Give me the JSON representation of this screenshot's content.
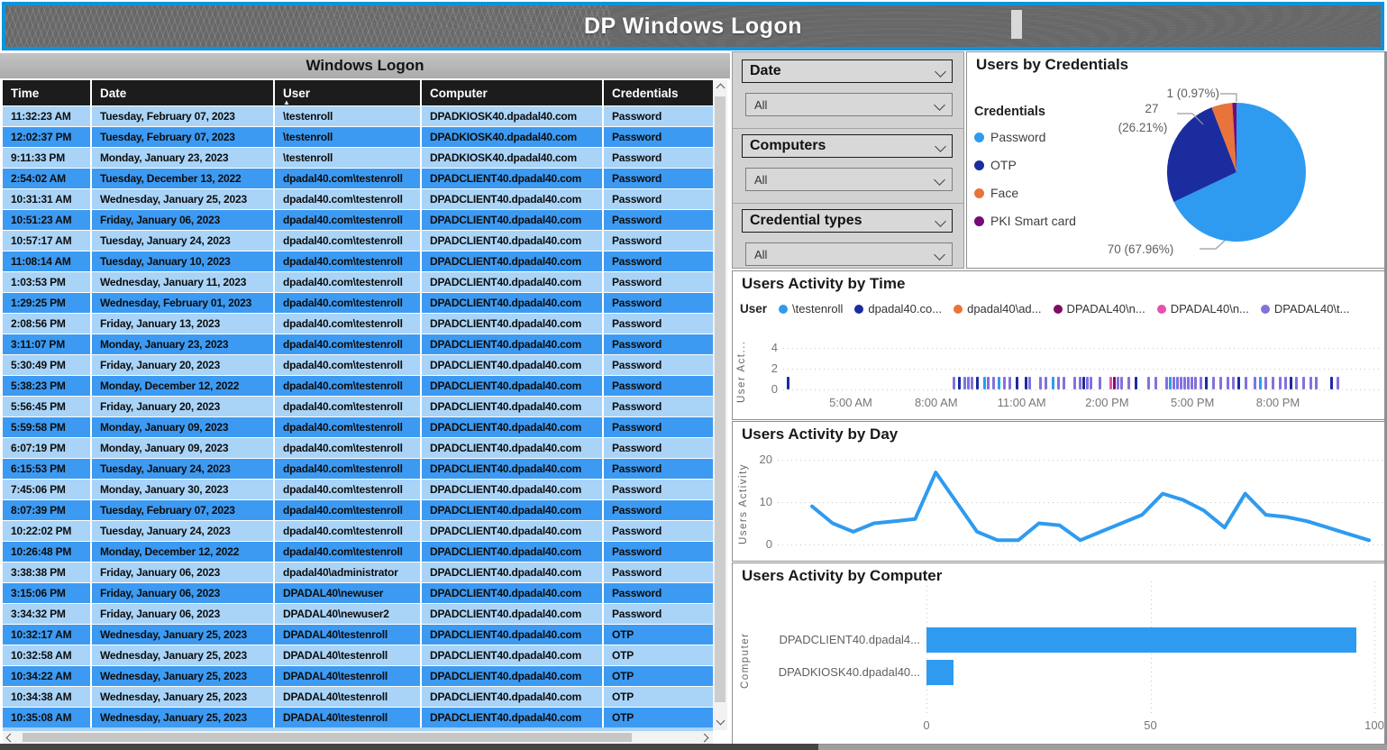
{
  "banner": {
    "title": "DP Windows Logon"
  },
  "table_panel": {
    "title": "Windows Logon",
    "columns": [
      "Time",
      "Date",
      "User",
      "Computer",
      "Credentials"
    ],
    "sort_column": "User",
    "rows": [
      [
        "11:32:23 AM",
        "Tuesday, February 07, 2023",
        "\\testenroll",
        "DPADKIOSK40.dpadal40.com",
        "Password"
      ],
      [
        "12:02:37 PM",
        "Tuesday, February 07, 2023",
        "\\testenroll",
        "DPADKIOSK40.dpadal40.com",
        "Password"
      ],
      [
        "9:11:33 PM",
        "Monday, January 23, 2023",
        "\\testenroll",
        "DPADKIOSK40.dpadal40.com",
        "Password"
      ],
      [
        "2:54:02 AM",
        "Tuesday, December 13, 2022",
        "dpadal40.com\\testenroll",
        "DPADCLIENT40.dpadal40.com",
        "Password"
      ],
      [
        "10:31:31 AM",
        "Wednesday, January 25, 2023",
        "dpadal40.com\\testenroll",
        "DPADCLIENT40.dpadal40.com",
        "Password"
      ],
      [
        "10:51:23 AM",
        "Friday, January 06, 2023",
        "dpadal40.com\\testenroll",
        "DPADCLIENT40.dpadal40.com",
        "Password"
      ],
      [
        "10:57:17 AM",
        "Tuesday, January 24, 2023",
        "dpadal40.com\\testenroll",
        "DPADCLIENT40.dpadal40.com",
        "Password"
      ],
      [
        "11:08:14 AM",
        "Tuesday, January 10, 2023",
        "dpadal40.com\\testenroll",
        "DPADCLIENT40.dpadal40.com",
        "Password"
      ],
      [
        "1:03:53 PM",
        "Wednesday, January 11, 2023",
        "dpadal40.com\\testenroll",
        "DPADCLIENT40.dpadal40.com",
        "Password"
      ],
      [
        "1:29:25 PM",
        "Wednesday, February 01, 2023",
        "dpadal40.com\\testenroll",
        "DPADCLIENT40.dpadal40.com",
        "Password"
      ],
      [
        "2:08:56 PM",
        "Friday, January 13, 2023",
        "dpadal40.com\\testenroll",
        "DPADCLIENT40.dpadal40.com",
        "Password"
      ],
      [
        "3:11:07 PM",
        "Monday, January 23, 2023",
        "dpadal40.com\\testenroll",
        "DPADCLIENT40.dpadal40.com",
        "Password"
      ],
      [
        "5:30:49 PM",
        "Friday, January 20, 2023",
        "dpadal40.com\\testenroll",
        "DPADCLIENT40.dpadal40.com",
        "Password"
      ],
      [
        "5:38:23 PM",
        "Monday, December 12, 2022",
        "dpadal40.com\\testenroll",
        "DPADCLIENT40.dpadal40.com",
        "Password"
      ],
      [
        "5:56:45 PM",
        "Friday, January 20, 2023",
        "dpadal40.com\\testenroll",
        "DPADCLIENT40.dpadal40.com",
        "Password"
      ],
      [
        "5:59:58 PM",
        "Monday, January 09, 2023",
        "dpadal40.com\\testenroll",
        "DPADCLIENT40.dpadal40.com",
        "Password"
      ],
      [
        "6:07:19 PM",
        "Monday, January 09, 2023",
        "dpadal40.com\\testenroll",
        "DPADCLIENT40.dpadal40.com",
        "Password"
      ],
      [
        "6:15:53 PM",
        "Tuesday, January 24, 2023",
        "dpadal40.com\\testenroll",
        "DPADCLIENT40.dpadal40.com",
        "Password"
      ],
      [
        "7:45:06 PM",
        "Monday, January 30, 2023",
        "dpadal40.com\\testenroll",
        "DPADCLIENT40.dpadal40.com",
        "Password"
      ],
      [
        "8:07:39 PM",
        "Tuesday, February 07, 2023",
        "dpadal40.com\\testenroll",
        "DPADCLIENT40.dpadal40.com",
        "Password"
      ],
      [
        "10:22:02 PM",
        "Tuesday, January 24, 2023",
        "dpadal40.com\\testenroll",
        "DPADCLIENT40.dpadal40.com",
        "Password"
      ],
      [
        "10:26:48 PM",
        "Monday, December 12, 2022",
        "dpadal40.com\\testenroll",
        "DPADCLIENT40.dpadal40.com",
        "Password"
      ],
      [
        "3:38:38 PM",
        "Friday, January 06, 2023",
        "dpadal40\\administrator",
        "DPADCLIENT40.dpadal40.com",
        "Password"
      ],
      [
        "3:15:06 PM",
        "Friday, January 06, 2023",
        "DPADAL40\\newuser",
        "DPADCLIENT40.dpadal40.com",
        "Password"
      ],
      [
        "3:34:32 PM",
        "Friday, January 06, 2023",
        "DPADAL40\\newuser2",
        "DPADCLIENT40.dpadal40.com",
        "Password"
      ],
      [
        "10:32:17 AM",
        "Wednesday, January 25, 2023",
        "DPADAL40\\testenroll",
        "DPADCLIENT40.dpadal40.com",
        "OTP"
      ],
      [
        "10:32:58 AM",
        "Wednesday, January 25, 2023",
        "DPADAL40\\testenroll",
        "DPADCLIENT40.dpadal40.com",
        "OTP"
      ],
      [
        "10:34:22 AM",
        "Wednesday, January 25, 2023",
        "DPADAL40\\testenroll",
        "DPADCLIENT40.dpadal40.com",
        "OTP"
      ],
      [
        "10:34:38 AM",
        "Wednesday, January 25, 2023",
        "DPADAL40\\testenroll",
        "DPADCLIENT40.dpadal40.com",
        "OTP"
      ],
      [
        "10:35:08 AM",
        "Wednesday, January 25, 2023",
        "DPADAL40\\testenroll",
        "DPADCLIENT40.dpadal40.com",
        "OTP"
      ]
    ]
  },
  "filters": {
    "items": [
      {
        "label": "Date",
        "value": "All"
      },
      {
        "label": "Computers",
        "value": "All"
      },
      {
        "label": "Credential types",
        "value": "All"
      }
    ]
  },
  "chart_data": [
    {
      "type": "pie",
      "title": "Users by Credentials",
      "legend_title": "Credentials",
      "categories": [
        "Password",
        "OTP",
        "Face",
        "PKI Smart card"
      ],
      "values": [
        70,
        27,
        5,
        1
      ],
      "colors": [
        "#2e9bf0",
        "#1b2c9f",
        "#e8743c",
        "#750b77"
      ],
      "callouts": {
        "password": "70 (67.96%)",
        "otp_value": "27",
        "otp_pct": "(26.21%)",
        "pki": "1 (0.97%)"
      }
    },
    {
      "type": "scatter",
      "title": "Users Activity by Time",
      "legend_title": "User",
      "ylabel": "User Act...",
      "yticks": [
        0,
        2,
        4
      ],
      "xticks": [
        "5:00 AM",
        "8:00 AM",
        "11:00 AM",
        "2:00 PM",
        "5:00 PM",
        "8:00 PM"
      ],
      "series": [
        {
          "name": "\\testenroll",
          "color": "#2e9bf0"
        },
        {
          "name": "dpadal40.co...",
          "color": "#1b2c9f"
        },
        {
          "name": "dpadal40\\ad...",
          "color": "#e8743c"
        },
        {
          "name": "DPADAL40\\n...",
          "color": "#7d0e63"
        },
        {
          "name": "DPADAL40\\n...",
          "color": "#e94fb0"
        },
        {
          "name": "DPADAL40\\t...",
          "color": "#8272de"
        }
      ],
      "tick_colors": {
        "p": "#8272de",
        "n": "#1b2c9f",
        "b": "#2e9bf0",
        "k": "#e94fb0",
        "m": "#7d0e63"
      },
      "ticks": [
        [
          0.6,
          "n"
        ],
        [
          28.3,
          "p"
        ],
        [
          29.2,
          "n"
        ],
        [
          30.1,
          "p"
        ],
        [
          30.7,
          "p"
        ],
        [
          31.3,
          "p"
        ],
        [
          32.2,
          "n"
        ],
        [
          33.4,
          "b"
        ],
        [
          34.0,
          "p"
        ],
        [
          34.9,
          "p"
        ],
        [
          35.8,
          "b"
        ],
        [
          36.7,
          "p"
        ],
        [
          37.7,
          "p"
        ],
        [
          38.9,
          "n"
        ],
        [
          40.4,
          "n"
        ],
        [
          41.0,
          "p"
        ],
        [
          42.8,
          "p"
        ],
        [
          43.7,
          "p"
        ],
        [
          44.9,
          "b"
        ],
        [
          45.8,
          "p"
        ],
        [
          46.7,
          "p"
        ],
        [
          48.5,
          "p"
        ],
        [
          49.4,
          "p"
        ],
        [
          50.0,
          "n"
        ],
        [
          50.6,
          "p"
        ],
        [
          51.2,
          "p"
        ],
        [
          52.7,
          "p"
        ],
        [
          54.5,
          "k"
        ],
        [
          55.1,
          "m"
        ],
        [
          55.7,
          "p"
        ],
        [
          56.3,
          "p"
        ],
        [
          57.5,
          "p"
        ],
        [
          58.7,
          "n"
        ],
        [
          60.8,
          "p"
        ],
        [
          62.0,
          "p"
        ],
        [
          63.9,
          "p"
        ],
        [
          64.5,
          "b"
        ],
        [
          65.1,
          "p"
        ],
        [
          65.7,
          "p"
        ],
        [
          66.3,
          "p"
        ],
        [
          66.9,
          "p"
        ],
        [
          67.5,
          "p"
        ],
        [
          68.1,
          "p"
        ],
        [
          68.7,
          "p"
        ],
        [
          69.6,
          "p"
        ],
        [
          70.5,
          "n"
        ],
        [
          71.7,
          "p"
        ],
        [
          72.9,
          "p"
        ],
        [
          74.1,
          "p"
        ],
        [
          75.0,
          "p"
        ],
        [
          75.9,
          "n"
        ],
        [
          77.1,
          "p"
        ],
        [
          78.6,
          "p"
        ],
        [
          79.5,
          "b"
        ],
        [
          80.4,
          "p"
        ],
        [
          81.6,
          "p"
        ],
        [
          82.8,
          "p"
        ],
        [
          83.7,
          "p"
        ],
        [
          84.6,
          "n"
        ],
        [
          85.5,
          "p"
        ],
        [
          86.7,
          "p"
        ],
        [
          87.9,
          "p"
        ],
        [
          88.9,
          "p"
        ],
        [
          91.4,
          "n"
        ],
        [
          92.5,
          "p"
        ]
      ]
    },
    {
      "type": "line",
      "title": "Users Activity by Day",
      "ylabel": "Users Activity",
      "yticks": [
        0,
        10,
        20
      ],
      "ylim": [
        0,
        20
      ],
      "color": "#2e9bf0",
      "values": [
        9,
        5,
        3,
        5,
        5.5,
        6,
        17,
        10,
        3,
        1,
        1,
        5,
        4.5,
        1,
        3,
        5,
        7,
        12,
        10.5,
        8,
        4,
        12,
        7,
        6.5,
        5.5,
        4,
        2.5,
        1
      ]
    },
    {
      "type": "bar",
      "orientation": "horizontal",
      "title": "Users Activity by Computer",
      "ylabel": "Computer",
      "categories": [
        "DPADCLIENT40.dpadal4...",
        "DPADKIOSK40.dpadal40..."
      ],
      "values": [
        96,
        6
      ],
      "xticks": [
        "0",
        "50",
        "100"
      ],
      "xlim": [
        0,
        100
      ],
      "color": "#2e9bf0"
    }
  ]
}
